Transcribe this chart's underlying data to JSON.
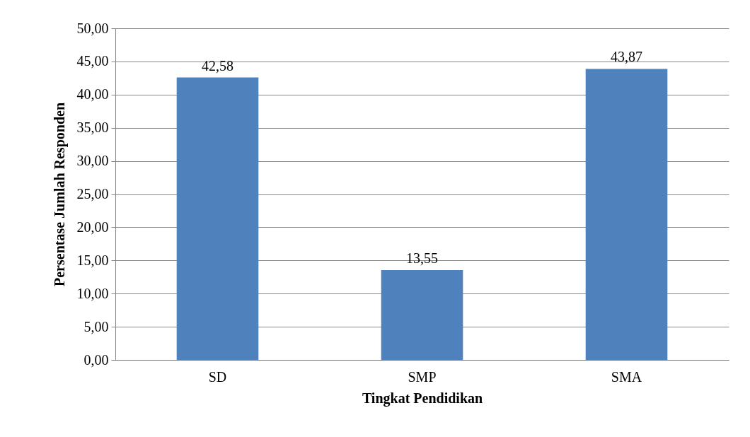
{
  "chart_data": {
    "type": "bar",
    "xlabel": "Tingkat Pendidikan",
    "ylabel": "Persentase Jumlah Responden",
    "categories": [
      "SD",
      "SMP",
      "SMA"
    ],
    "values": [
      42.58,
      13.55,
      43.87
    ],
    "value_labels": [
      "42,58",
      "13,55",
      "43,87"
    ],
    "color": "#4f81bd",
    "ylim": [
      0,
      50
    ],
    "yticks": [
      {
        "value": 0,
        "label": "0,00"
      },
      {
        "value": 5,
        "label": "5,00"
      },
      {
        "value": 10,
        "label": "10,00"
      },
      {
        "value": 15,
        "label": "15,00"
      },
      {
        "value": 20,
        "label": "20,00"
      },
      {
        "value": 25,
        "label": "25,00"
      },
      {
        "value": 30,
        "label": "30,00"
      },
      {
        "value": 35,
        "label": "35,00"
      },
      {
        "value": 40,
        "label": "40,00"
      },
      {
        "value": 45,
        "label": "45,00"
      },
      {
        "value": 50,
        "label": "50,00"
      }
    ],
    "grid": "y"
  }
}
